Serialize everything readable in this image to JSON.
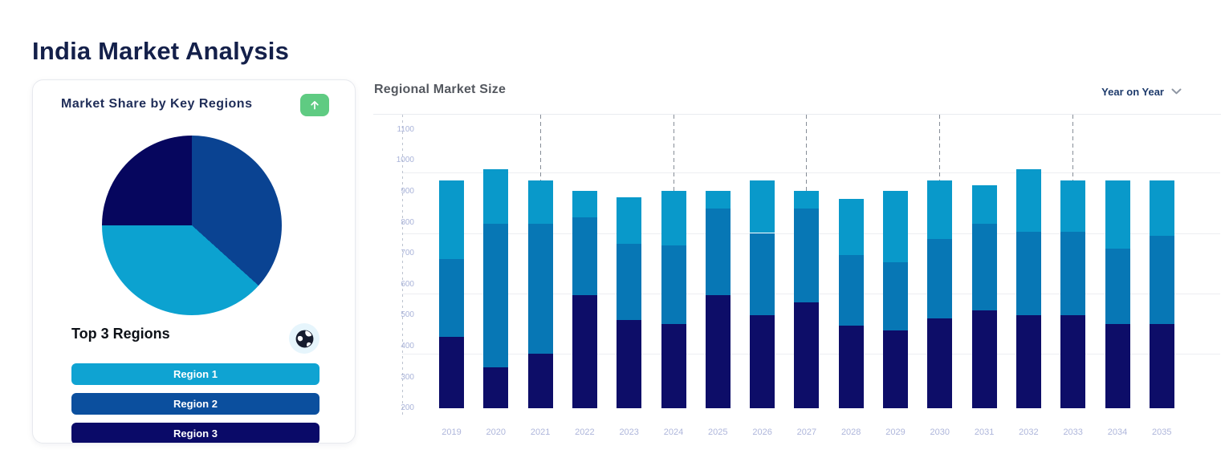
{
  "page": {
    "title": "India Market Analysis"
  },
  "market_share_card": {
    "title": "Market Share by Key Regions",
    "expand_button": {
      "icon": "arrow-up",
      "background": "#5FCB82"
    },
    "subtitle": "Top 3 Regions",
    "globe_icon": "globe",
    "region_buttons": [
      {
        "label": "Region 1",
        "color": "#0FA3D2"
      },
      {
        "label": "Region 2",
        "color": "#0B4F9E"
      },
      {
        "label": "Region 3",
        "color": "#0A0A68"
      }
    ]
  },
  "regional_chart": {
    "title": "Regional Market Size",
    "dropdown_label": "Year on Year"
  },
  "chart_data": [
    {
      "type": "pie",
      "title": "Market Share by Key Regions",
      "direction": "clockwise",
      "start_angle_deg": 0,
      "legend": "none",
      "slices": [
        {
          "label": "Region 2",
          "pct": 36.7,
          "color": "#0A4392"
        },
        {
          "label": "Region 1",
          "pct": 38.3,
          "color": "#0CA2D0"
        },
        {
          "label": "Region 3",
          "pct": 25.0,
          "color": "#06065E"
        }
      ]
    },
    {
      "type": "stacked_bar",
      "title": "Regional Market Size",
      "x": [
        "2019",
        "2020",
        "2021",
        "2022",
        "2023",
        "2024",
        "2025",
        "2026",
        "2027",
        "2028",
        "2029",
        "2030",
        "2031",
        "2032",
        "2033",
        "2034",
        "2035"
      ],
      "baseline": 200,
      "ylim": [
        200,
        1150
      ],
      "yticks": [
        200,
        300,
        400,
        500,
        600,
        700,
        800,
        900,
        1000,
        1100
      ],
      "gridline_values": [
        960,
        765,
        570,
        375
      ],
      "dashed_gridline_years": [
        "2021",
        "2024",
        "2027",
        "2030",
        "2033"
      ],
      "grid": "horizontal-light",
      "legend": "none",
      "series": [
        {
          "name": "Region 3",
          "color": "#0D0D68",
          "values": [
            230,
            130,
            175,
            365,
            285,
            270,
            365,
            300,
            340,
            265,
            250,
            290,
            315,
            300,
            300,
            270,
            270
          ]
        },
        {
          "name": "Region 2",
          "color": "#0777B5",
          "values": [
            250,
            465,
            420,
            250,
            245,
            255,
            280,
            265,
            305,
            230,
            220,
            255,
            280,
            270,
            270,
            245,
            285
          ]
        },
        {
          "name": "Region 1",
          "color": "#0999CA",
          "values": [
            255,
            175,
            140,
            85,
            150,
            175,
            55,
            170,
            55,
            180,
            230,
            190,
            125,
            200,
            165,
            220,
            180
          ]
        }
      ]
    }
  ]
}
